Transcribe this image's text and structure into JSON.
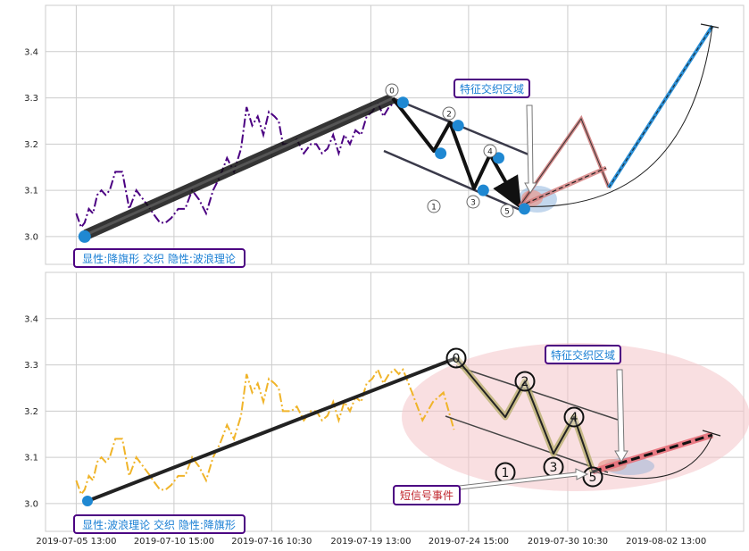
{
  "colors": {
    "upper_line": "#4b0082",
    "lower_line": "#f0b429",
    "pivot": "#1f88d2",
    "box_border": "#4b0082",
    "box_text": "#1a7fd4",
    "short_text": "#c0262d",
    "ellipse": "#f4c5c9",
    "grid": "#cccccc"
  },
  "icons": {
    "arrow": "arrow-icon"
  },
  "chart_data": [
    {
      "type": "line",
      "ylim": [
        2.94,
        3.5
      ],
      "yticks": [
        "3.0",
        "3.1",
        "3.2",
        "3.3",
        "3.4"
      ],
      "xlim": [
        0,
        100
      ],
      "xgrid_positions": [
        4.4,
        18.4,
        32.4,
        46.6,
        60.6,
        74.8,
        88.9
      ],
      "price_series": {
        "x": [
          4.4,
          5.1,
          5.6,
          6.2,
          6.8,
          7.4,
          8.0,
          8.6,
          9.2,
          10.0,
          11.0,
          12.0,
          13.0,
          14.0,
          15.0,
          15.4,
          16.4,
          17.2,
          18.0,
          19.0,
          20.0,
          21.0,
          22.0,
          23.0,
          24.0,
          25.0,
          26.0,
          27.0,
          28.0,
          28.8,
          29.6,
          30.4,
          31.2,
          32.0,
          32.8,
          33.4,
          34.0,
          34.6,
          35.2,
          36.0,
          37.0,
          38.0,
          38.8,
          39.6,
          40.4,
          41.2,
          42.0,
          42.8,
          43.6,
          44.4,
          45.2,
          46.0,
          46.8,
          47.6,
          48.4,
          49.2,
          50.0,
          50.6,
          51.2
        ],
        "y": [
          3.05,
          3.02,
          3.03,
          3.06,
          3.05,
          3.09,
          3.1,
          3.09,
          3.1,
          3.14,
          3.14,
          3.06,
          3.1,
          3.08,
          3.06,
          3.05,
          3.03,
          3.03,
          3.04,
          3.06,
          3.06,
          3.1,
          3.08,
          3.05,
          3.1,
          3.13,
          3.17,
          3.14,
          3.19,
          3.28,
          3.24,
          3.26,
          3.22,
          3.27,
          3.26,
          3.25,
          3.2,
          3.2,
          3.2,
          3.21,
          3.18,
          3.2,
          3.2,
          3.18,
          3.19,
          3.22,
          3.18,
          3.22,
          3.2,
          3.23,
          3.22,
          3.26,
          3.27,
          3.29,
          3.26,
          3.28,
          3.29,
          3.28,
          3.29
        ]
      },
      "pivots": [
        {
          "x": 5.6,
          "y": 3.0
        },
        {
          "x": 51.2,
          "y": 3.29
        },
        {
          "x": 56.6,
          "y": 3.18
        },
        {
          "x": 59.1,
          "y": 3.24
        },
        {
          "x": 62.7,
          "y": 3.1
        },
        {
          "x": 64.9,
          "y": 3.17
        },
        {
          "x": 68.6,
          "y": 3.06
        }
      ],
      "wave_labels": [
        "0",
        "1",
        "2",
        "3",
        "4",
        "5"
      ],
      "label_caption": "显性:降旗形 交织 隐性:波浪理论",
      "feature_caption": "特征交织区域"
    },
    {
      "type": "line",
      "ylim": [
        2.94,
        3.5
      ],
      "yticks": [
        "3.0",
        "3.1",
        "3.2",
        "3.3",
        "3.4"
      ],
      "xlim": [
        0,
        100
      ],
      "xticks": [
        {
          "x": 4.4,
          "label": "2019-07-05 13:00"
        },
        {
          "x": 18.4,
          "label": "2019-07-10 15:00"
        },
        {
          "x": 32.4,
          "label": "2019-07-16 10:30"
        },
        {
          "x": 46.6,
          "label": "2019-07-19 13:00"
        },
        {
          "x": 60.6,
          "label": "2019-07-24 15:00"
        },
        {
          "x": 74.8,
          "label": "2019-07-30 10:30"
        },
        {
          "x": 88.9,
          "label": "2019-08-02 13:00"
        }
      ],
      "price_series": {
        "x": [
          4.4,
          5.1,
          5.6,
          6.2,
          6.8,
          7.4,
          8.0,
          8.6,
          9.2,
          10.0,
          11.0,
          12.0,
          13.0,
          14.0,
          15.0,
          15.4,
          16.4,
          17.2,
          18.0,
          19.0,
          20.0,
          21.0,
          22.0,
          23.0,
          24.0,
          25.0,
          26.0,
          27.0,
          28.0,
          28.8,
          29.6,
          30.4,
          31.2,
          32.0,
          32.8,
          33.4,
          34.0,
          34.6,
          35.2,
          36.0,
          37.0,
          38.0,
          38.8,
          39.6,
          40.4,
          41.2,
          42.0,
          42.8,
          43.6,
          44.4,
          45.2,
          46.0,
          46.8,
          47.6,
          48.4,
          49.2,
          50.0,
          50.6,
          51.2,
          52.5,
          54.0,
          55.5,
          57.0,
          58.5
        ],
        "y": [
          3.05,
          3.02,
          3.03,
          3.06,
          3.05,
          3.09,
          3.1,
          3.09,
          3.1,
          3.14,
          3.14,
          3.06,
          3.1,
          3.08,
          3.06,
          3.05,
          3.03,
          3.03,
          3.04,
          3.06,
          3.06,
          3.1,
          3.08,
          3.05,
          3.1,
          3.13,
          3.17,
          3.14,
          3.19,
          3.28,
          3.24,
          3.26,
          3.22,
          3.27,
          3.26,
          3.25,
          3.2,
          3.2,
          3.2,
          3.21,
          3.18,
          3.2,
          3.2,
          3.18,
          3.19,
          3.22,
          3.18,
          3.22,
          3.2,
          3.23,
          3.22,
          3.26,
          3.27,
          3.29,
          3.26,
          3.28,
          3.29,
          3.28,
          3.29,
          3.24,
          3.18,
          3.22,
          3.24,
          3.16
        ]
      },
      "wave_labels": [
        "0",
        "1",
        "2",
        "3",
        "4",
        "5"
      ],
      "label_caption": "显性:波浪理论 交织 隐性:降旗形",
      "feature_caption": "特征交织区域",
      "short_signal_caption": "短信号事件"
    }
  ]
}
